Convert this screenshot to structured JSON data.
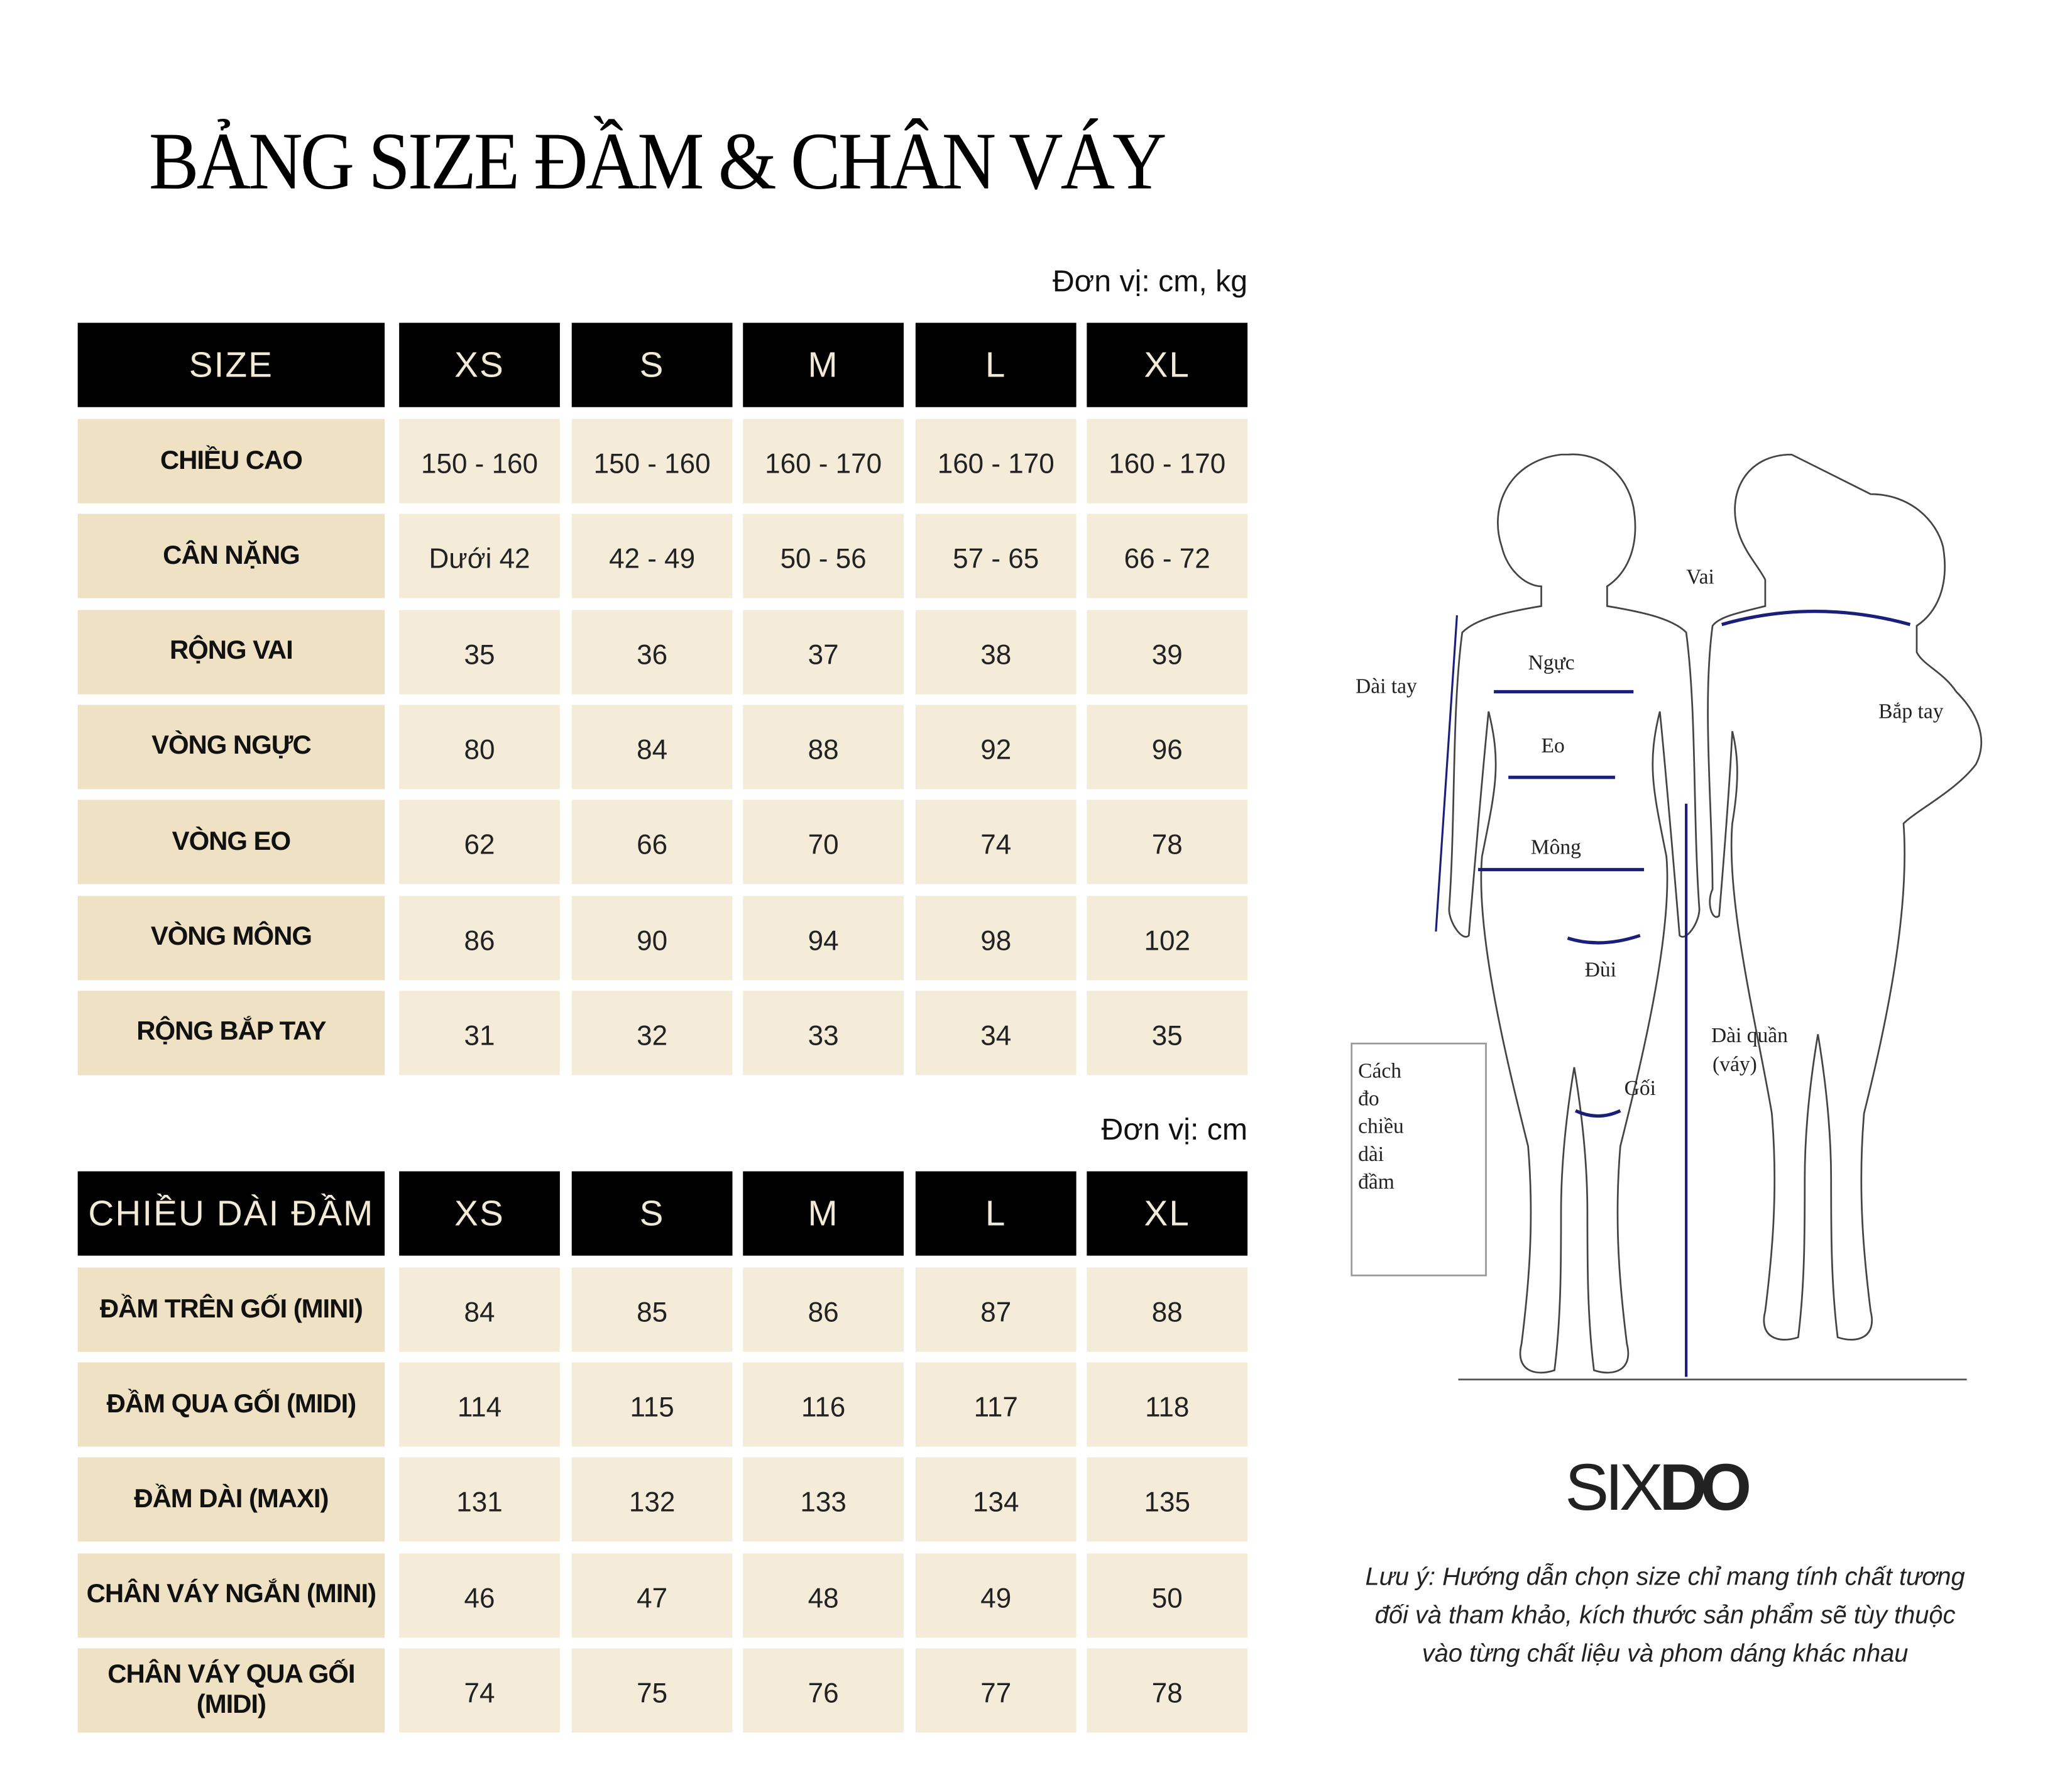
{
  "title": "BẢNG SIZE ĐẦM & CHÂN VÁY",
  "table1": {
    "unit": "Đơn vị: cm, kg",
    "headers": [
      "SIZE",
      "XS",
      "S",
      "M",
      "L",
      "XL"
    ],
    "rows": [
      {
        "label": "CHIỀU CAO",
        "values": [
          "150 - 160",
          "150 - 160",
          "160 - 170",
          "160 - 170",
          "160 - 170"
        ]
      },
      {
        "label": "CÂN NẶNG",
        "values": [
          "Dưới 42",
          "42 - 49",
          "50 - 56",
          "57 - 65",
          "66 - 72"
        ]
      },
      {
        "label": "RỘNG VAI",
        "values": [
          "35",
          "36",
          "37",
          "38",
          "39"
        ]
      },
      {
        "label": "VÒNG NGỰC",
        "values": [
          "80",
          "84",
          "88",
          "92",
          "96"
        ]
      },
      {
        "label": "VÒNG EO",
        "values": [
          "62",
          "66",
          "70",
          "74",
          "78"
        ]
      },
      {
        "label": "VÒNG MÔNG",
        "values": [
          "86",
          "90",
          "94",
          "98",
          "102"
        ]
      },
      {
        "label": "RỘNG BẮP TAY",
        "values": [
          "31",
          "32",
          "33",
          "34",
          "35"
        ]
      }
    ]
  },
  "table2": {
    "unit": "Đơn vị: cm",
    "headers": [
      "CHIỀU DÀI ĐẦM",
      "XS",
      "S",
      "M",
      "L",
      "XL"
    ],
    "rows": [
      {
        "label": "ĐẦM TRÊN GỐI (MINI)",
        "values": [
          "84",
          "85",
          "86",
          "87",
          "88"
        ]
      },
      {
        "label": "ĐẦM QUA GỐI (MIDI)",
        "values": [
          "114",
          "115",
          "116",
          "117",
          "118"
        ]
      },
      {
        "label": "ĐẦM DÀI (MAXI)",
        "values": [
          "131",
          "132",
          "133",
          "134",
          "135"
        ]
      },
      {
        "label": "CHÂN VÁY NGẮN (MINI)",
        "values": [
          "46",
          "47",
          "48",
          "49",
          "50"
        ]
      },
      {
        "label": "CHÂN VÁY QUA GỐI (MIDI)",
        "values": [
          "74",
          "75",
          "76",
          "77",
          "78"
        ]
      }
    ]
  },
  "diagram": {
    "labels": {
      "vai": "Vai",
      "dai_tay": "Dài tay",
      "nguc": "Ngực",
      "eo": "Eo",
      "bap_tay": "Bắp tay",
      "mong": "Mông",
      "dui": "Đùi",
      "goi": "Gối",
      "dai_quan_1": "Dài quần",
      "dai_quan_2": "(váy)",
      "cach_do": [
        "Cách",
        "đo",
        "chiều",
        "dài",
        "đầm"
      ]
    },
    "measure_color": "#1a1f7a"
  },
  "logo": {
    "part1": "SIX",
    "part2": "DO"
  },
  "note": [
    "Lưu ý: Hướng dẫn chọn size chỉ mang tính chất tương",
    "đối và tham khảo, kích thước sản phẩm sẽ tùy thuộc",
    "vào từng chất liệu và phom dáng khác nhau"
  ]
}
